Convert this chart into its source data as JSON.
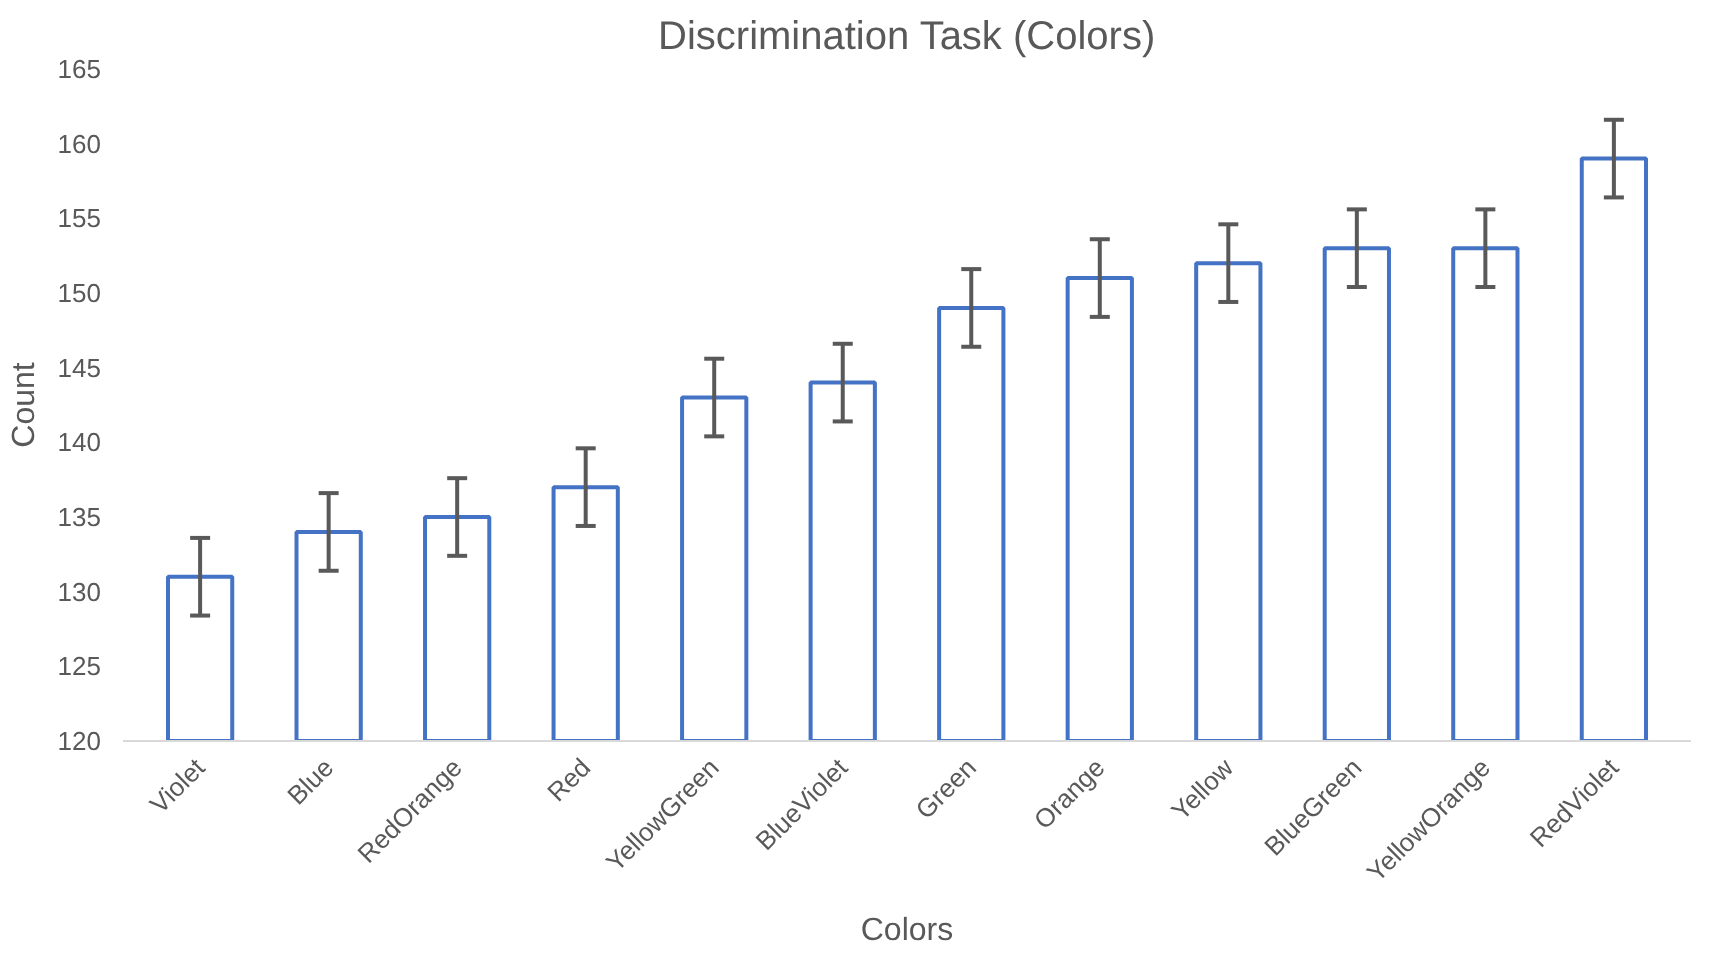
{
  "chart_data": {
    "type": "bar",
    "title": "Discrimination Task (Colors)",
    "xlabel": "Colors",
    "ylabel": "Count",
    "categories": [
      "Violet",
      "Blue",
      "RedOrange",
      "Red",
      "YellowGreen",
      "BlueViolet",
      "Green",
      "Orange",
      "Yellow",
      "BlueGreen",
      "YellowOrange",
      "RedViolet"
    ],
    "values": [
      131,
      134,
      135,
      137,
      143,
      144,
      149,
      151,
      152,
      153,
      153,
      159
    ],
    "errors": [
      2.6,
      2.6,
      2.6,
      2.6,
      2.6,
      2.6,
      2.6,
      2.6,
      2.6,
      2.6,
      2.6,
      2.6
    ],
    "color": "#4472c4",
    "ylim": [
      120,
      165
    ],
    "yticks": [
      120,
      125,
      130,
      135,
      140,
      145,
      150,
      155,
      160,
      165
    ],
    "grid": false
  }
}
